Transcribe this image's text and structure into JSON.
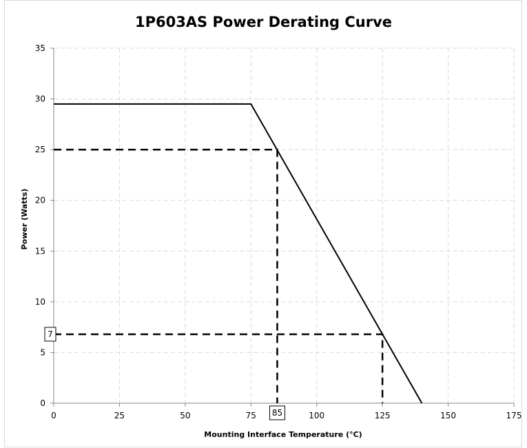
{
  "chart_data": {
    "type": "line",
    "title": "1P603AS Power Derating Curve",
    "xlabel": "Mounting Interface Temperature (°C)",
    "ylabel": "Power (Watts)",
    "xlim": [
      0,
      175
    ],
    "ylim": [
      0,
      35
    ],
    "xticks": [
      0,
      25,
      50,
      75,
      100,
      125,
      150,
      175
    ],
    "yticks": [
      0,
      5,
      10,
      15,
      20,
      25,
      30,
      35
    ],
    "grid": true,
    "series": [
      {
        "x": [
          0,
          75,
          140
        ],
        "y": [
          29.5,
          29.5,
          0
        ],
        "style": "solid"
      }
    ],
    "reference_lines": [
      {
        "x": [
          0,
          85,
          85
        ],
        "y": [
          25,
          25,
          0
        ],
        "style": "dashed"
      },
      {
        "x": [
          0,
          125,
          125
        ],
        "y": [
          6.8,
          6.8,
          0
        ],
        "style": "dashed"
      }
    ],
    "annotations": [
      {
        "text": "85",
        "x": 85,
        "y": 0
      },
      {
        "text": "7",
        "x": 0,
        "y": 6.8
      }
    ],
    "colors": {
      "line": "#000000",
      "grid": "#d9d9d9",
      "axis": "#868686"
    }
  }
}
